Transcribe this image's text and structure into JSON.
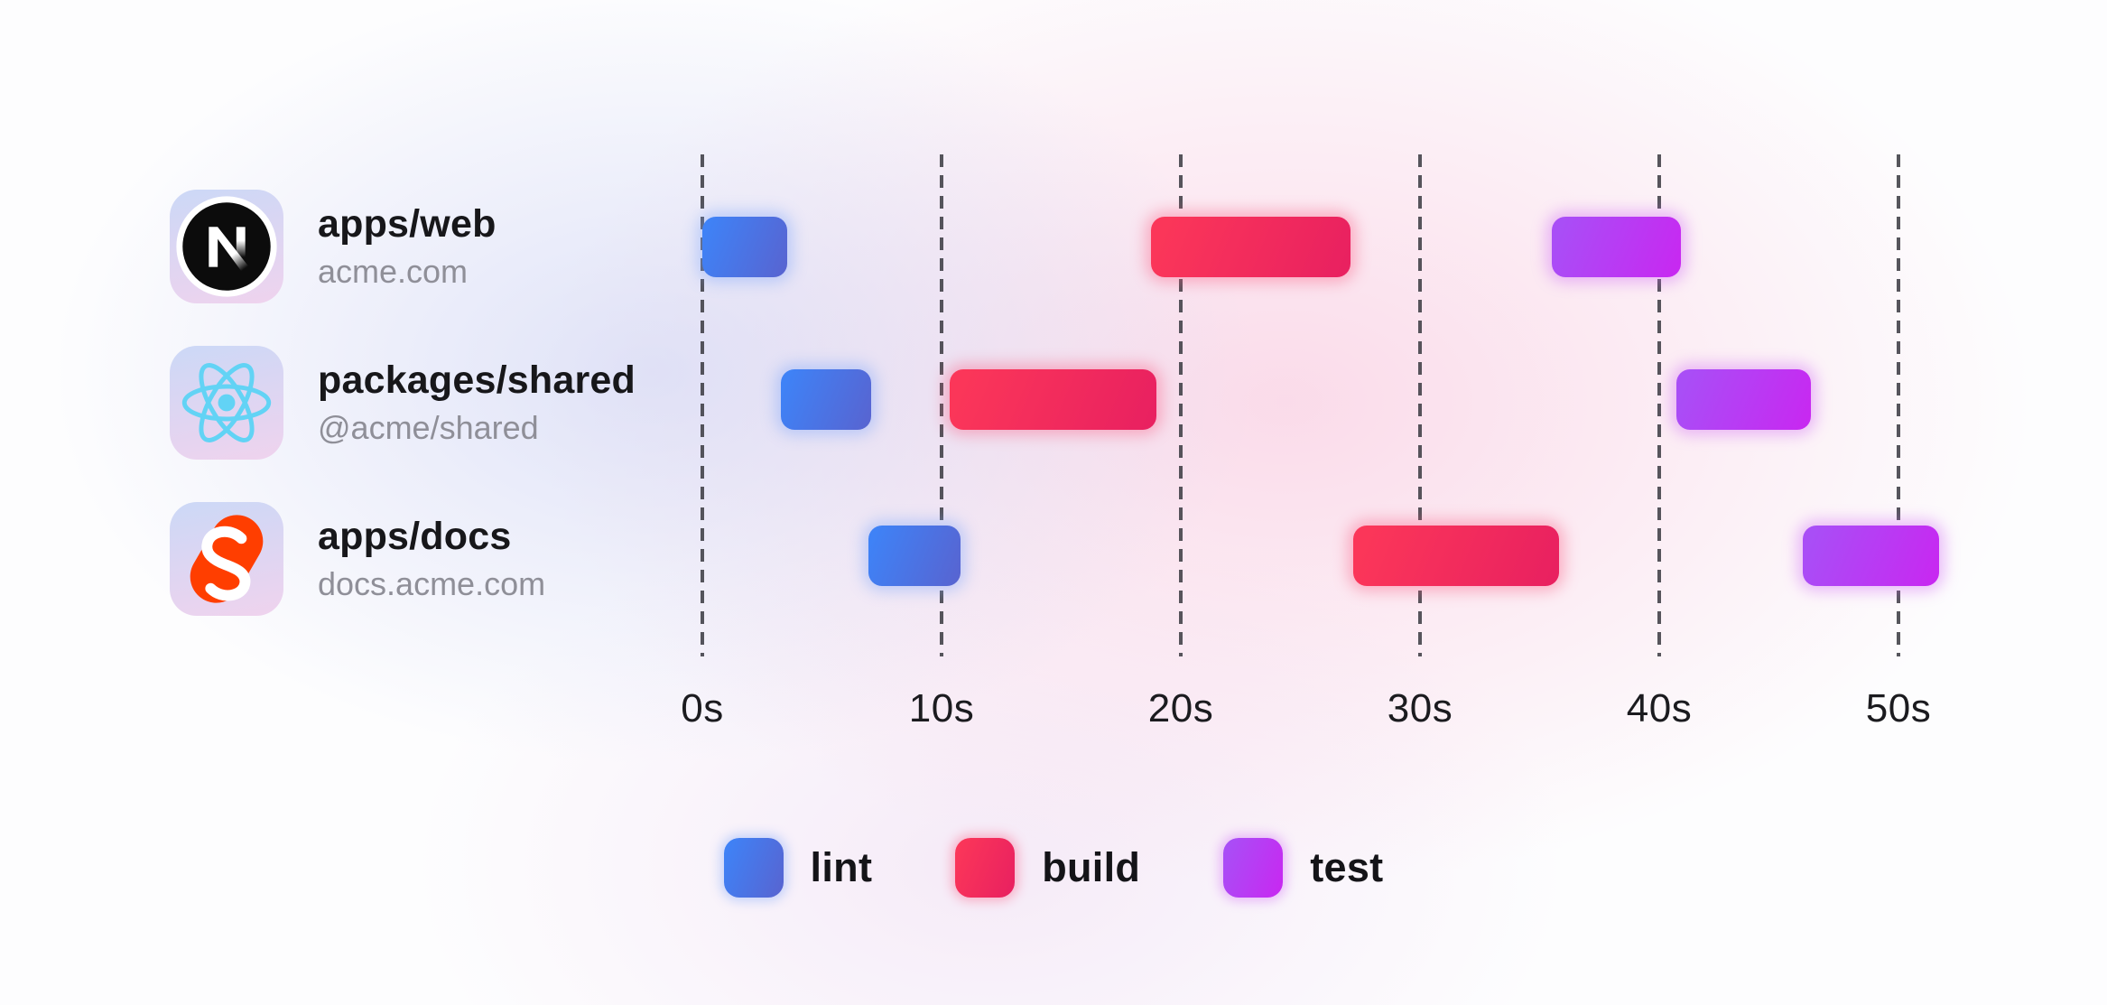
{
  "rows": [
    {
      "id": "apps-web",
      "title": "apps/web",
      "subtitle": "acme.com",
      "icon": "nextjs-logo"
    },
    {
      "id": "packages-shared",
      "title": "packages/shared",
      "subtitle": "@acme/shared",
      "icon": "react-logo"
    },
    {
      "id": "apps-docs",
      "title": "apps/docs",
      "subtitle": "docs.acme.com",
      "icon": "svelte-logo"
    }
  ],
  "chart_data": {
    "type": "gantt",
    "title": "",
    "x_unit": "seconds",
    "x_range": [
      0,
      55
    ],
    "axis_ticks": [
      {
        "seconds": 0,
        "label": "0s"
      },
      {
        "seconds": 10,
        "label": "10s"
      },
      {
        "seconds": 20,
        "label": "20s"
      },
      {
        "seconds": 30,
        "label": "30s"
      },
      {
        "seconds": 40,
        "label": "40s"
      },
      {
        "seconds": 50,
        "label": "50s"
      }
    ],
    "grid": "dashed-vertical",
    "legend_position": "bottom-center",
    "legend": [
      "lint",
      "build",
      "test"
    ],
    "rows": [
      {
        "label": "apps/web",
        "tasks": [
          {
            "type": "lint",
            "start": 0,
            "end": 3.55
          },
          {
            "type": "build",
            "start": 18.75,
            "end": 27.1
          },
          {
            "type": "test",
            "start": 35.5,
            "end": 40.9
          }
        ]
      },
      {
        "label": "packages/shared",
        "tasks": [
          {
            "type": "lint",
            "start": 3.3,
            "end": 7.05
          },
          {
            "type": "build",
            "start": 10.35,
            "end": 19.0
          },
          {
            "type": "test",
            "start": 40.7,
            "end": 46.35
          }
        ]
      },
      {
        "label": "apps/docs",
        "tasks": [
          {
            "type": "lint",
            "start": 6.95,
            "end": 10.8
          },
          {
            "type": "build",
            "start": 27.2,
            "end": 35.8
          },
          {
            "type": "test",
            "start": 46.0,
            "end": 51.7
          }
        ]
      }
    ],
    "task_colors": {
      "lint": {
        "from": "#3f82f6",
        "to": "#5765d2"
      },
      "build": {
        "from": "#fb3659",
        "to": "#e92160"
      },
      "test": {
        "from": "#a94ef6",
        "to": "#c729f1"
      }
    }
  },
  "icons": {
    "nextjs": {
      "name": "nextjs-logo",
      "circle": "#0c0c0c",
      "mark": "#ffffff"
    },
    "react": {
      "name": "react-logo",
      "color": "#62d3f5"
    },
    "svelte": {
      "name": "svelte-logo",
      "color": "#ff3e00",
      "mark": "#ffffff"
    }
  }
}
